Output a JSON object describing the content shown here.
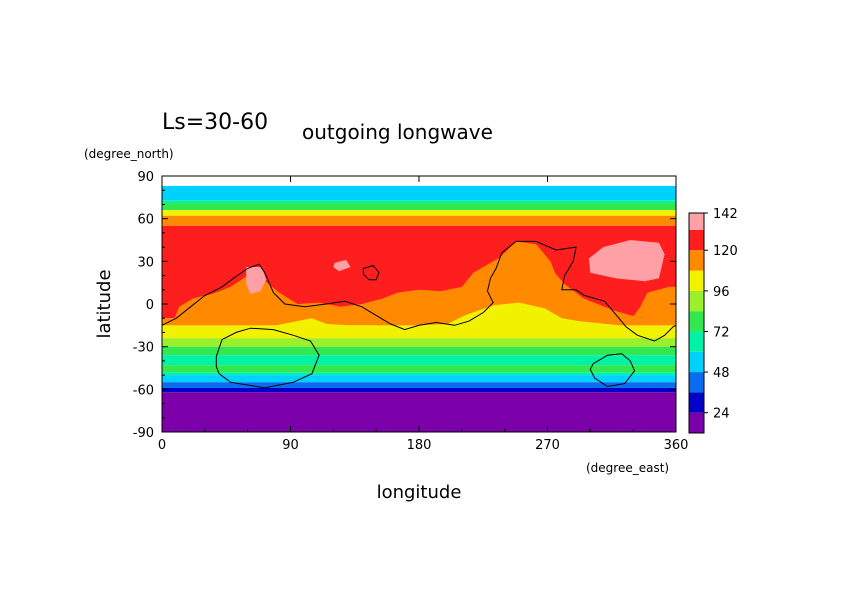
{
  "chart_data": {
    "type": "heatmap",
    "title_prefix": "Ls=30-60",
    "title": "outgoing longwave",
    "xlabel": "longitude",
    "ylabel": "latitude",
    "x_units": "(degree_east)",
    "y_units": "(degree_north)",
    "xlim": [
      0,
      360
    ],
    "ylim": [
      -90,
      90
    ],
    "x_ticks": [
      "0",
      "90",
      "180",
      "270",
      "360"
    ],
    "y_ticks": [
      "90",
      "60",
      "30",
      "0",
      "-30",
      "-60",
      "-90"
    ],
    "colorbar": {
      "levels": [
        12,
        24,
        36,
        48,
        60,
        72,
        84,
        96,
        108,
        120,
        132,
        142
      ],
      "tick_labels": [
        "142",
        "120",
        "96",
        "72",
        "48",
        "24"
      ],
      "tick_values": [
        142,
        120,
        96,
        72,
        48,
        24
      ],
      "colors": [
        "#7b00a9",
        "#0000c8",
        "#0a6df0",
        "#00d2ff",
        "#00f2a6",
        "#33e84e",
        "#9bf02b",
        "#f2f200",
        "#ff8a00",
        "#ff1e1e",
        "#ffa0a6"
      ]
    },
    "lat_bands": [
      {
        "lat": [
          83,
          90
        ],
        "color": "#ffffff"
      },
      {
        "lat": [
          73,
          83
        ],
        "color": "#00d2ff"
      },
      {
        "lat": [
          71,
          73
        ],
        "color": "#00f2a6"
      },
      {
        "lat": [
          66,
          71
        ],
        "color": "#33e84e"
      },
      {
        "lat": [
          62,
          66
        ],
        "color": "#f2f200"
      },
      {
        "lat": [
          55,
          62
        ],
        "color": "#ff8a00"
      },
      {
        "lat": [
          -10,
          55
        ],
        "color": "#ff1e1e"
      },
      {
        "lat": [
          -15,
          -10
        ],
        "color": "#ff8a00"
      },
      {
        "lat": [
          -24,
          -15
        ],
        "color": "#f2f200"
      },
      {
        "lat": [
          -30,
          -24
        ],
        "color": "#9bf02b"
      },
      {
        "lat": [
          -36,
          -30
        ],
        "color": "#33e84e"
      },
      {
        "lat": [
          -43,
          -36
        ],
        "color": "#00f2a6"
      },
      {
        "lat": [
          -48,
          -43
        ],
        "color": "#33e84e"
      },
      {
        "lat": [
          -50,
          -48
        ],
        "color": "#00f2a6"
      },
      {
        "lat": [
          -55,
          -50
        ],
        "color": "#00d2ff"
      },
      {
        "lat": [
          -59,
          -55
        ],
        "color": "#0a6df0"
      },
      {
        "lat": [
          -62,
          -59
        ],
        "color": "#0000c8"
      },
      {
        "lat": [
          -90,
          -62
        ],
        "color": "#7b00a9"
      }
    ],
    "regions": [
      {
        "level": 108,
        "color": "#ff8a00",
        "points": [
          [
            0,
            -15
          ],
          [
            8,
            -12
          ],
          [
            12,
            -2
          ],
          [
            22,
            4
          ],
          [
            35,
            7
          ],
          [
            48,
            12
          ],
          [
            60,
            20
          ],
          [
            70,
            18
          ],
          [
            82,
            8
          ],
          [
            95,
            0
          ],
          [
            110,
            1
          ],
          [
            125,
            -2
          ],
          [
            140,
            0
          ],
          [
            155,
            4
          ],
          [
            165,
            8
          ],
          [
            180,
            10
          ],
          [
            195,
            9
          ],
          [
            210,
            12
          ],
          [
            218,
            22
          ],
          [
            225,
            26
          ],
          [
            232,
            30
          ],
          [
            250,
            40
          ],
          [
            265,
            36
          ],
          [
            270,
            28
          ],
          [
            282,
            14
          ],
          [
            295,
            4
          ],
          [
            305,
            0
          ],
          [
            318,
            -5
          ],
          [
            332,
            -9
          ],
          [
            345,
            -12
          ],
          [
            360,
            -13
          ],
          [
            360,
            -15
          ],
          [
            0,
            -15
          ]
        ]
      },
      {
        "level": 108,
        "color": "#ff8a00",
        "points": [
          [
            226,
            -5
          ],
          [
            228,
            18
          ],
          [
            234,
            30
          ],
          [
            248,
            44
          ],
          [
            262,
            42
          ],
          [
            272,
            30
          ],
          [
            280,
            10
          ],
          [
            285,
            -5
          ]
        ]
      },
      {
        "level": 108,
        "color": "#ff8a00",
        "points": [
          [
            330,
            -9
          ],
          [
            335,
            -2
          ],
          [
            340,
            8
          ],
          [
            355,
            12
          ],
          [
            360,
            12
          ],
          [
            360,
            -12
          ]
        ]
      },
      {
        "level": 96,
        "color": "#f2f200",
        "points": [
          [
            80,
            -15
          ],
          [
            105,
            -10
          ],
          [
            115,
            -14
          ],
          [
            130,
            -15
          ],
          [
            150,
            -15
          ],
          [
            165,
            -17
          ],
          [
            182,
            -15
          ],
          [
            200,
            -14
          ],
          [
            212,
            -8
          ],
          [
            232,
            -1
          ],
          [
            250,
            1
          ],
          [
            268,
            -3
          ],
          [
            280,
            -10
          ],
          [
            292,
            -12
          ],
          [
            320,
            -15
          ],
          [
            340,
            -17
          ],
          [
            360,
            -16
          ],
          [
            360,
            -17
          ],
          [
            0,
            -17
          ]
        ]
      },
      {
        "level": 132,
        "color": "#ffa0a6",
        "points": [
          [
            59,
            26
          ],
          [
            70,
            26
          ],
          [
            73,
            17
          ],
          [
            69,
            9
          ],
          [
            62,
            7
          ],
          [
            59,
            14
          ]
        ]
      },
      {
        "level": 132,
        "color": "#ffa0a6",
        "points": [
          [
            121,
            29
          ],
          [
            129,
            31
          ],
          [
            132,
            26
          ],
          [
            124,
            23
          ],
          [
            120,
            26
          ]
        ]
      },
      {
        "level": 132,
        "color": "#ffa0a6",
        "points": [
          [
            299,
            32
          ],
          [
            309,
            40
          ],
          [
            328,
            45
          ],
          [
            348,
            43
          ],
          [
            352,
            35
          ],
          [
            348,
            18
          ],
          [
            338,
            16
          ],
          [
            318,
            18
          ],
          [
            300,
            22
          ]
        ]
      }
    ],
    "outlines": [
      {
        "closed": false,
        "points": [
          [
            0,
            -15
          ],
          [
            10,
            -10
          ],
          [
            20,
            -2
          ],
          [
            30,
            6
          ],
          [
            42,
            12
          ],
          [
            50,
            18
          ],
          [
            60,
            25
          ],
          [
            68,
            28
          ],
          [
            72,
            22
          ],
          [
            78,
            8
          ],
          [
            86,
            0
          ],
          [
            100,
            -2
          ],
          [
            115,
            0
          ],
          [
            128,
            2
          ],
          [
            140,
            -2
          ],
          [
            150,
            -8
          ],
          [
            160,
            -14
          ],
          [
            170,
            -18
          ],
          [
            180,
            -15
          ],
          [
            192,
            -13
          ],
          [
            205,
            -15
          ],
          [
            215,
            -12
          ],
          [
            225,
            -6
          ],
          [
            232,
            1
          ],
          [
            228,
            9
          ],
          [
            230,
            18
          ],
          [
            234,
            25
          ],
          [
            238,
            36
          ],
          [
            248,
            44
          ],
          [
            262,
            44
          ],
          [
            276,
            38
          ],
          [
            290,
            40
          ],
          [
            288,
            30
          ],
          [
            282,
            20
          ],
          [
            280,
            10
          ],
          [
            290,
            10
          ],
          [
            296,
            6
          ],
          [
            310,
            2
          ],
          [
            320,
            -10
          ],
          [
            325,
            -16
          ],
          [
            333,
            -22
          ],
          [
            345,
            -26
          ],
          [
            352,
            -22
          ],
          [
            358,
            -16
          ],
          [
            360,
            -15
          ]
        ]
      },
      {
        "closed": true,
        "points": [
          [
            38,
            -37
          ],
          [
            42,
            -25
          ],
          [
            52,
            -20
          ],
          [
            62,
            -17
          ],
          [
            78,
            -18
          ],
          [
            92,
            -22
          ],
          [
            104,
            -26
          ],
          [
            110,
            -36
          ],
          [
            105,
            -49
          ],
          [
            92,
            -55
          ],
          [
            72,
            -59
          ],
          [
            48,
            -55
          ],
          [
            40,
            -49
          ],
          [
            38,
            -44
          ]
        ]
      },
      {
        "closed": true,
        "points": [
          [
            302,
            -42
          ],
          [
            312,
            -36
          ],
          [
            322,
            -35
          ],
          [
            328,
            -40
          ],
          [
            331,
            -47
          ],
          [
            324,
            -56
          ],
          [
            312,
            -58
          ],
          [
            303,
            -52
          ],
          [
            300,
            -46
          ]
        ]
      },
      {
        "closed": true,
        "points": [
          [
            141,
            25
          ],
          [
            148,
            27
          ],
          [
            152,
            22
          ],
          [
            150,
            17
          ],
          [
            145,
            17
          ],
          [
            141,
            21
          ]
        ]
      }
    ]
  }
}
